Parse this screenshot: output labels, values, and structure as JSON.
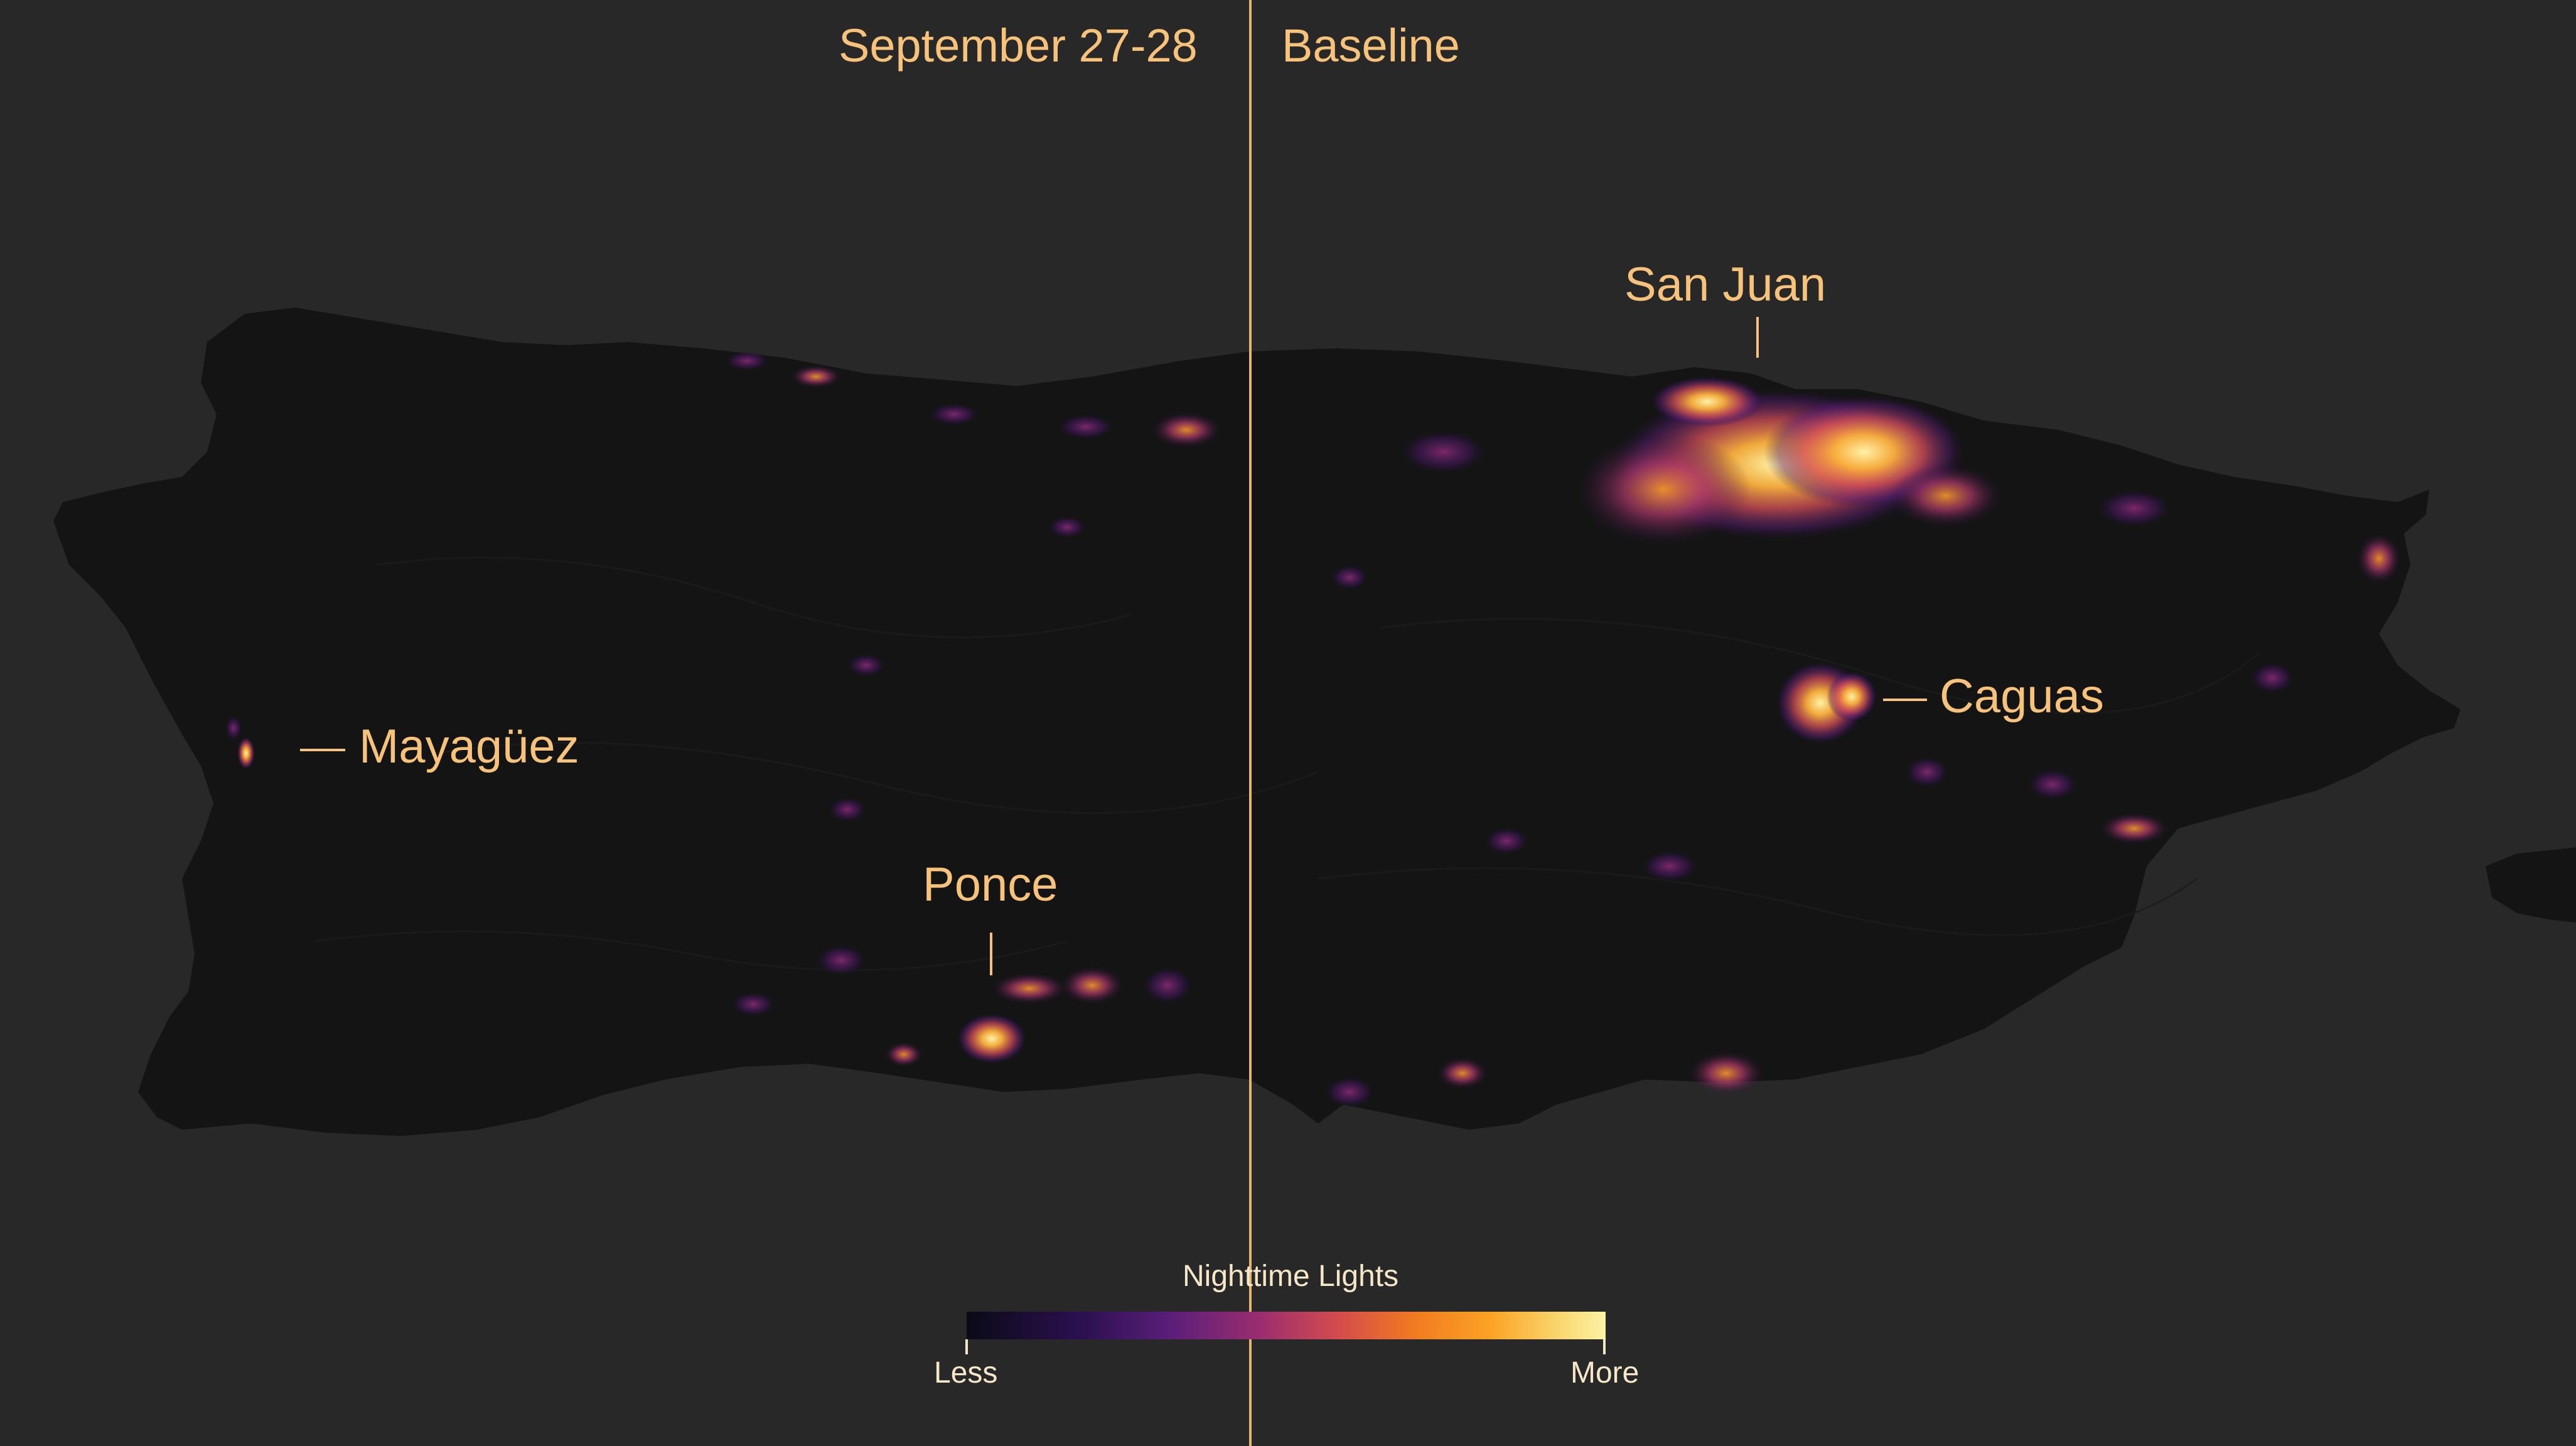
{
  "panels": {
    "left_title": "September 27-28",
    "right_title": "Baseline"
  },
  "cities": {
    "san_juan": "San Juan",
    "caguas": "Caguas",
    "mayaguez": "Mayagüez",
    "ponce": "Ponce"
  },
  "legend": {
    "title": "Nighttime Lights",
    "low_label": "Less",
    "high_label": "More",
    "gradient_colors": [
      "#0b0a17",
      "#2b1050",
      "#5b1e7a",
      "#9b2d6e",
      "#d34b4d",
      "#f17a20",
      "#fba324",
      "#f9d36a",
      "#fbf3a4"
    ]
  },
  "colors": {
    "background": "#282828",
    "land": "#141414",
    "label": "#f7c27a",
    "divider": "#e8b66a"
  }
}
